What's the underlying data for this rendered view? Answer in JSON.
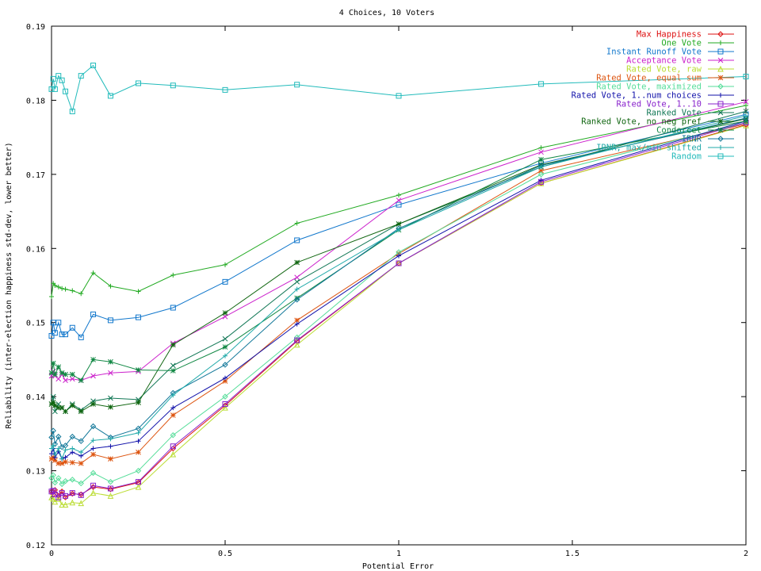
{
  "chart_data": {
    "type": "line",
    "title": "4 Choices, 10 Voters",
    "xlabel": "Potential Error",
    "ylabel": "Reliability (inter-election happiness std-dev, lower better)",
    "xlim": [
      0,
      2
    ],
    "ylim": [
      0.12,
      0.19
    ],
    "xticks": [
      "0",
      "0.5",
      "1",
      "1.5",
      "2"
    ],
    "yticks": [
      "0.12",
      "0.13",
      "0.14",
      "0.15",
      "0.16",
      "0.17",
      "0.18",
      "0.19"
    ],
    "legend_position": "top-right",
    "grid": false,
    "x": [
      0,
      0.005,
      0.01,
      0.02,
      0.03,
      0.04,
      0.06,
      0.085,
      0.12,
      0.17,
      0.25,
      0.35,
      0.5,
      0.707,
      1,
      1.41,
      2
    ],
    "series": [
      {
        "name": "Max Happiness",
        "color": "#dd1111",
        "marker": "diamond",
        "values": [
          0.1272,
          0.1268,
          0.1274,
          0.1266,
          0.1272,
          0.1264,
          0.1269,
          0.1268,
          0.1278,
          0.1275,
          0.1284,
          0.133,
          0.1388,
          0.1475,
          0.158,
          0.1688,
          0.1767
        ]
      },
      {
        "name": "One Vote",
        "color": "#22aa22",
        "marker": "plus",
        "values": [
          0.1535,
          0.1553,
          0.155,
          0.1548,
          0.1546,
          0.1545,
          0.1543,
          0.1539,
          0.1567,
          0.1549,
          0.1542,
          0.1564,
          0.1578,
          0.1634,
          0.1672,
          0.1736,
          0.1793
        ]
      },
      {
        "name": "Instant Runoff Vote",
        "color": "#1177cc",
        "marker": "square",
        "values": [
          0.1482,
          0.15,
          0.1486,
          0.15,
          0.1484,
          0.1484,
          0.1493,
          0.148,
          0.1511,
          0.1503,
          0.1507,
          0.152,
          0.1555,
          0.1611,
          0.1659,
          0.1715,
          0.1781
        ]
      },
      {
        "name": "Acceptance Vote",
        "color": "#cc22cc",
        "marker": "x",
        "values": [
          0.1428,
          0.1434,
          0.1428,
          0.1424,
          0.143,
          0.1422,
          0.1424,
          0.1422,
          0.1428,
          0.1432,
          0.1434,
          0.1472,
          0.1508,
          0.1561,
          0.1665,
          0.173,
          0.1798
        ]
      },
      {
        "name": "Rated Vote, raw",
        "color": "#bbdd33",
        "marker": "triangle",
        "values": [
          0.1264,
          0.1262,
          0.1258,
          0.1262,
          0.1254,
          0.1254,
          0.1257,
          0.1256,
          0.127,
          0.1266,
          0.1278,
          0.1322,
          0.1385,
          0.147,
          0.158,
          0.1688,
          0.1766
        ]
      },
      {
        "name": "Rated Vote, equal sum",
        "color": "#dd5511",
        "marker": "star",
        "values": [
          0.1316,
          0.1318,
          0.1314,
          0.131,
          0.131,
          0.1312,
          0.1311,
          0.131,
          0.1322,
          0.1316,
          0.1325,
          0.1375,
          0.1421,
          0.1503,
          0.1593,
          0.1705,
          0.1768
        ]
      },
      {
        "name": "Rated Vote, maximized",
        "color": "#55dd99",
        "marker": "diamond",
        "values": [
          0.129,
          0.1294,
          0.1284,
          0.129,
          0.1282,
          0.1286,
          0.1288,
          0.1283,
          0.1297,
          0.1285,
          0.13,
          0.1348,
          0.14,
          0.148,
          0.1595,
          0.17,
          0.177
        ]
      },
      {
        "name": "Rated Vote, 1..num choices",
        "color": "#1111aa",
        "marker": "plus",
        "values": [
          0.1323,
          0.133,
          0.1318,
          0.1326,
          0.1316,
          0.1318,
          0.1325,
          0.132,
          0.133,
          0.1333,
          0.134,
          0.1385,
          0.1425,
          0.1498,
          0.159,
          0.1692,
          0.1772
        ]
      },
      {
        "name": "Rated Vote, 1..10",
        "color": "#8822cc",
        "marker": "square",
        "values": [
          0.1272,
          0.1273,
          0.1268,
          0.1264,
          0.127,
          0.1266,
          0.127,
          0.1267,
          0.128,
          0.1276,
          0.1285,
          0.1333,
          0.139,
          0.1476,
          0.158,
          0.169,
          0.177
        ]
      },
      {
        "name": "Ranked Vote",
        "color": "#117755",
        "marker": "x",
        "values": [
          0.139,
          0.14,
          0.138,
          0.139,
          0.1385,
          0.138,
          0.139,
          0.1382,
          0.1394,
          0.1398,
          0.1396,
          0.1442,
          0.1478,
          0.1555,
          0.1633,
          0.171,
          0.1785
        ]
      },
      {
        "name": "Ranked Vote, no neg pref",
        "color": "#116611",
        "marker": "star",
        "values": [
          0.139,
          0.1392,
          0.1388,
          0.1385,
          0.1385,
          0.138,
          0.1388,
          0.138,
          0.139,
          0.1386,
          0.1392,
          0.147,
          0.1513,
          0.1581,
          0.1633,
          0.1713,
          0.1775
        ]
      },
      {
        "name": "Condorcet",
        "color": "#118844",
        "marker": "star",
        "values": [
          0.1432,
          0.1445,
          0.143,
          0.144,
          0.1432,
          0.143,
          0.143,
          0.1422,
          0.145,
          0.1447,
          0.1436,
          0.1435,
          0.1467,
          0.1533,
          0.1625,
          0.172,
          0.1772
        ]
      },
      {
        "name": "IRNR",
        "color": "#117799",
        "marker": "diamond",
        "values": [
          0.1345,
          0.1354,
          0.1336,
          0.1346,
          0.1332,
          0.1334,
          0.1346,
          0.134,
          0.136,
          0.1345,
          0.1357,
          0.1405,
          0.1443,
          0.1531,
          0.1627,
          0.1712,
          0.1776
        ]
      },
      {
        "name": "IRNR, max/min shifted",
        "color": "#22aaaa",
        "marker": "plus",
        "values": [
          0.133,
          0.1334,
          0.1322,
          0.133,
          0.1316,
          0.1328,
          0.133,
          0.1325,
          0.1341,
          0.1343,
          0.1351,
          0.1402,
          0.1455,
          0.1545,
          0.1625,
          0.171,
          0.1779
        ]
      },
      {
        "name": "Random",
        "color": "#22bbbb",
        "marker": "square",
        "values": [
          0.1815,
          0.1829,
          0.1815,
          0.1833,
          0.1827,
          0.1812,
          0.1785,
          0.1833,
          0.1847,
          0.1806,
          0.1823,
          0.182,
          0.1814,
          0.1821,
          0.1806,
          0.1822,
          0.1832
        ]
      }
    ]
  }
}
